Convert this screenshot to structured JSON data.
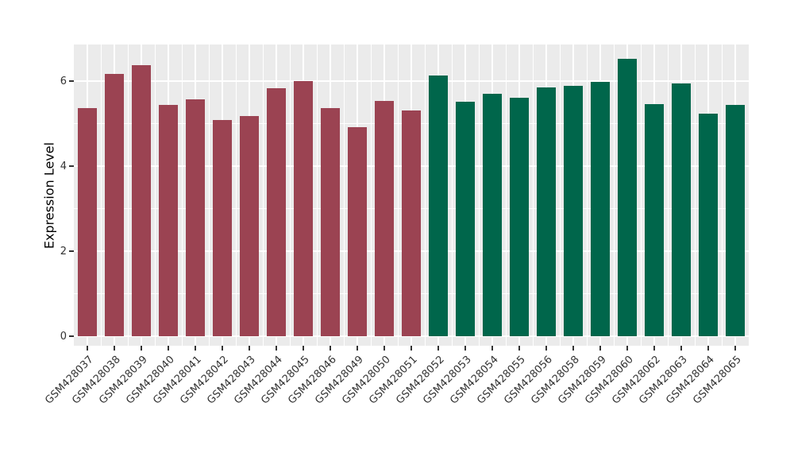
{
  "figure": {
    "background": "#FFFFFF",
    "panel_background": "#EBEBEB",
    "gridline_color": "#FFFFFF",
    "axis_text_color": "#333333",
    "tick_mark_color": "#333333"
  },
  "chart_data": {
    "type": "bar",
    "title": "",
    "xlabel": "",
    "ylabel": "Expression Level",
    "ylim": [
      0,
      6.9
    ],
    "yticks": [
      "0",
      "2",
      "4",
      "6"
    ],
    "ytick_values": [
      0,
      2,
      4,
      6
    ],
    "minor_ytick_values": [
      1,
      3,
      5
    ],
    "grid": true,
    "legend_position": "none",
    "x_label_angle_deg": 45,
    "series": [
      {
        "color": "#9B4352",
        "categories": [
          "GSM428037",
          "GSM428038",
          "GSM428039",
          "GSM428040",
          "GSM428041",
          "GSM428042",
          "GSM428043",
          "GSM428044",
          "GSM428045",
          "GSM428046",
          "GSM428049",
          "GSM428050",
          "GSM428051"
        ],
        "values": [
          5.37,
          6.16,
          6.37,
          5.43,
          5.57,
          5.09,
          5.18,
          5.83,
          6.0,
          5.36,
          4.92,
          5.54,
          5.31
        ]
      },
      {
        "color": "#00664B",
        "categories": [
          "GSM428052",
          "GSM428053",
          "GSM428054",
          "GSM428055",
          "GSM428056",
          "GSM428058",
          "GSM428059",
          "GSM428060",
          "GSM428062",
          "GSM428063",
          "GSM428064",
          "GSM428065"
        ],
        "values": [
          6.14,
          5.51,
          5.71,
          5.6,
          5.85,
          5.89,
          5.98,
          6.52,
          5.45,
          5.94,
          5.24,
          5.43
        ]
      }
    ]
  }
}
